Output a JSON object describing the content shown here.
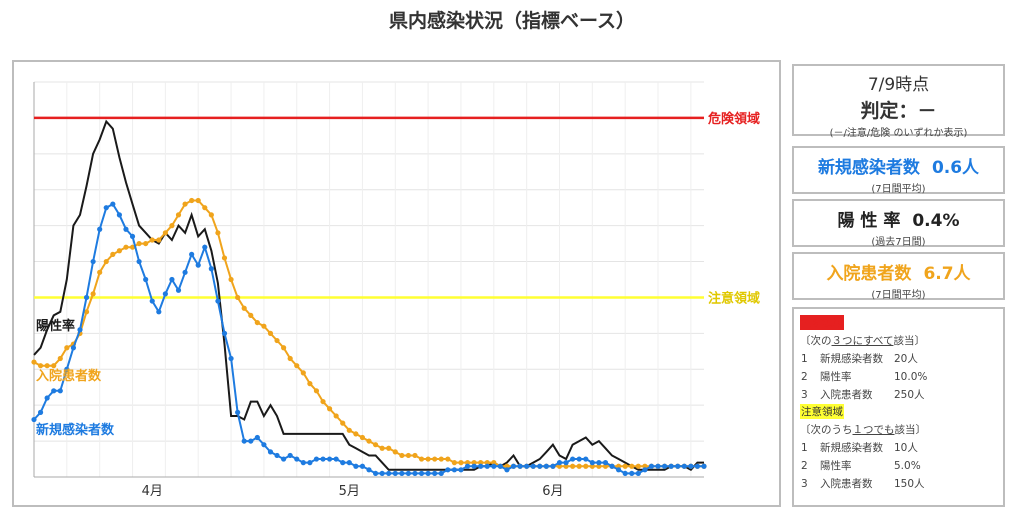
{
  "page": {
    "title": "県内感染状況（指標ベース）"
  },
  "status": {
    "as_of": "7/9時点",
    "judgment": "判定：－",
    "note": "(－/注意/危険 のいずれか表示)"
  },
  "metrics": [
    {
      "name": "新規感染者数",
      "value": "0.6人",
      "sub": "(7日間平均)",
      "color": "#1e7be0"
    },
    {
      "name": "陽 性 率",
      "value": "0.4%",
      "sub": "(過去7日間)",
      "color": "#222222"
    },
    {
      "name": "入院患者数",
      "value": "6.7人",
      "sub": "(7日間平均)",
      "color": "#f0a41c"
    }
  ],
  "criteria": {
    "danger": {
      "title": "危険領域",
      "cond_pre": "〔次の",
      "cond_u": "３つにすべて",
      "cond_post": "該当〕",
      "items": [
        {
          "no": "1",
          "label": "新規感染者数",
          "value": "20人"
        },
        {
          "no": "2",
          "label": "陽性率",
          "value": "10.0%"
        },
        {
          "no": "3",
          "label": "入院患者数",
          "value": "250人"
        }
      ]
    },
    "caution": {
      "title": "注意領域",
      "cond_pre": "〔次のうち",
      "cond_u": "１つでも",
      "cond_post": "該当〕",
      "items": [
        {
          "no": "1",
          "label": "新規感染者数",
          "value": "10人"
        },
        {
          "no": "2",
          "label": "陽性率",
          "value": "5.0%"
        },
        {
          "no": "3",
          "label": "入院患者数",
          "value": "150人"
        }
      ]
    }
  },
  "chart_data": {
    "type": "line",
    "x_ticks": [
      {
        "day": 13,
        "label": "4月"
      },
      {
        "day": 43,
        "label": "5月"
      },
      {
        "day": 74,
        "label": "6月"
      }
    ],
    "x_range": [
      -5,
      97
    ],
    "y_range": [
      0,
      11
    ],
    "grid": true,
    "reference_lines": [
      {
        "name": "危険領域",
        "y": 10,
        "color": "#e62020"
      },
      {
        "name": "注意領域",
        "y": 5,
        "color": "#ffff33"
      }
    ],
    "series": [
      {
        "name": "陽性率",
        "color": "#1a1a1a",
        "markers": false,
        "start": -5,
        "values": [
          3.4,
          3.6,
          4.1,
          4.5,
          4.6,
          5.5,
          7.0,
          7.3,
          8.1,
          9.0,
          9.4,
          9.9,
          9.7,
          8.9,
          8.2,
          7.6,
          7.0,
          6.8,
          6.6,
          6.5,
          6.8,
          6.6,
          7.0,
          6.8,
          7.3,
          6.7,
          6.9,
          6.3,
          5.4,
          3.7,
          1.7,
          1.7,
          1.6,
          2.1,
          2.1,
          1.7,
          2.0,
          1.7,
          1.2,
          1.2,
          1.2,
          1.2,
          1.2,
          1.2,
          1.2,
          1.2,
          1.2,
          1.2,
          0.9,
          0.8,
          0.7,
          0.6,
          0.6,
          0.4,
          0.2,
          0.2,
          0.2,
          0.2,
          0.2,
          0.2,
          0.2,
          0.2,
          0.2,
          0.2,
          0.2,
          0.2,
          0.2,
          0.2,
          0.3,
          0.3,
          0.4,
          0.3,
          0.4,
          0.6,
          0.3,
          0.3,
          0.4,
          0.5,
          0.7,
          0.9,
          0.6,
          0.5,
          0.9,
          1.0,
          1.1,
          0.9,
          1.0,
          0.8,
          0.6,
          0.5,
          0.4,
          0.3,
          0.2,
          0.2,
          0.2,
          0.2,
          0.2,
          0.3,
          0.3,
          0.3,
          0.2,
          0.4,
          0.4
        ]
      },
      {
        "name": "入院患者数",
        "color": "#f0a41c",
        "markers": true,
        "start": -5,
        "values": [
          3.2,
          3.1,
          3.1,
          3.1,
          3.3,
          3.6,
          3.7,
          4.0,
          4.6,
          5.1,
          5.7,
          6.0,
          6.2,
          6.3,
          6.4,
          6.4,
          6.5,
          6.5,
          6.6,
          6.6,
          6.8,
          7.0,
          7.3,
          7.6,
          7.7,
          7.7,
          7.5,
          7.3,
          6.8,
          6.1,
          5.5,
          5.0,
          4.7,
          4.5,
          4.3,
          4.2,
          4.0,
          3.8,
          3.6,
          3.3,
          3.1,
          2.9,
          2.6,
          2.4,
          2.1,
          1.9,
          1.7,
          1.5,
          1.3,
          1.2,
          1.1,
          1.0,
          0.9,
          0.8,
          0.8,
          0.7,
          0.6,
          0.6,
          0.6,
          0.5,
          0.5,
          0.5,
          0.5,
          0.5,
          0.4,
          0.4,
          0.4,
          0.4,
          0.4,
          0.4,
          0.4,
          0.3,
          0.3,
          0.3,
          0.3,
          0.3,
          0.3,
          0.3,
          0.3,
          0.3,
          0.3,
          0.3,
          0.3,
          0.3,
          0.3,
          0.3,
          0.3,
          0.3,
          0.3,
          0.3,
          0.3,
          0.3,
          0.3,
          0.3,
          0.3,
          0.3,
          0.3,
          0.3,
          0.3,
          0.3,
          0.3,
          0.3,
          0.3
        ]
      },
      {
        "name": "新規感染者数",
        "color": "#1e7be0",
        "markers": true,
        "start": -5,
        "values": [
          1.6,
          1.8,
          2.2,
          2.4,
          2.4,
          3.0,
          3.6,
          4.1,
          5.0,
          6.0,
          6.9,
          7.5,
          7.6,
          7.3,
          6.9,
          6.7,
          6.0,
          5.5,
          4.9,
          4.6,
          5.1,
          5.5,
          5.2,
          5.7,
          6.2,
          5.9,
          6.4,
          5.8,
          4.9,
          4.0,
          3.3,
          1.8,
          1.0,
          1.0,
          1.1,
          0.9,
          0.7,
          0.6,
          0.5,
          0.6,
          0.5,
          0.4,
          0.4,
          0.5,
          0.5,
          0.5,
          0.5,
          0.4,
          0.4,
          0.3,
          0.3,
          0.2,
          0.1,
          0.1,
          0.1,
          0.1,
          0.1,
          0.1,
          0.1,
          0.1,
          0.1,
          0.1,
          0.1,
          0.2,
          0.2,
          0.2,
          0.3,
          0.3,
          0.3,
          0.3,
          0.3,
          0.3,
          0.2,
          0.3,
          0.3,
          0.3,
          0.3,
          0.3,
          0.3,
          0.3,
          0.4,
          0.4,
          0.5,
          0.5,
          0.5,
          0.4,
          0.4,
          0.4,
          0.3,
          0.2,
          0.1,
          0.1,
          0.1,
          0.2,
          0.3,
          0.3,
          0.3,
          0.3,
          0.3,
          0.3,
          0.3,
          0.3,
          0.3
        ]
      }
    ],
    "series_labels": [
      {
        "series": "陽性率",
        "day": -5,
        "y": 4.1
      },
      {
        "series": "入院患者数",
        "day": -5,
        "y": 2.7
      },
      {
        "series": "新規感染者数",
        "day": -5,
        "y": 1.2
      }
    ]
  }
}
